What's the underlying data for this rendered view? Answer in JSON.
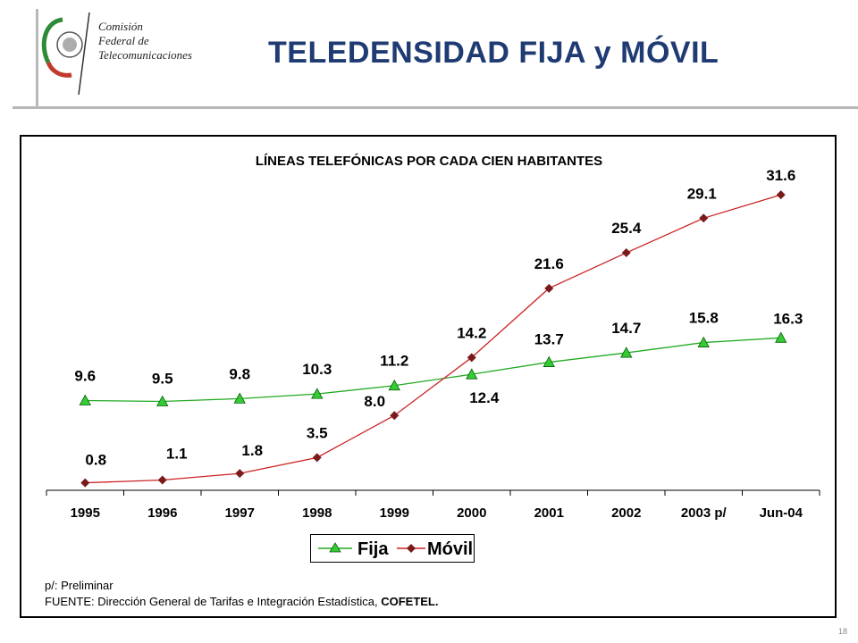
{
  "header": {
    "logo_lines": [
      "Comisión",
      "Federal de",
      "Telecomunicaciones"
    ],
    "title": "TELEDENSIDAD FIJA y MÓVIL"
  },
  "chart_data": {
    "type": "line",
    "title": "LÍNEAS TELEFÓNICAS POR CADA CIEN HABITANTES",
    "categories": [
      "1995",
      "1996",
      "1997",
      "1998",
      "1999",
      "2000",
      "2001",
      "2002",
      "2003 p/",
      "Jun-04"
    ],
    "series": [
      {
        "name": "Fija",
        "values": [
          9.6,
          9.5,
          9.8,
          10.3,
          11.2,
          12.4,
          13.7,
          14.7,
          15.8,
          16.3
        ],
        "color": "#22aa22",
        "marker": "triangle",
        "marker_color": "#33cc33"
      },
      {
        "name": "Móvil",
        "values": [
          0.8,
          1.1,
          1.8,
          3.5,
          8.0,
          14.2,
          21.6,
          25.4,
          29.1,
          31.6
        ],
        "color": "#cc2222",
        "marker": "diamond",
        "marker_color": "#7a1a1a"
      }
    ],
    "data_labels": {
      "Fija": [
        "9.6",
        "9.5",
        "9.8",
        "10.3",
        "11.2",
        "12.4",
        "13.7",
        "14.7",
        "15.8",
        "16.3"
      ],
      "Móvil": [
        "0.8",
        "1.1",
        "1.8",
        "3.5",
        "8.0",
        "14.2",
        "21.6",
        "25.4",
        "29.1",
        "31.6"
      ]
    },
    "ylim": [
      0,
      34
    ],
    "grid": false,
    "legend_position": "bottom-center"
  },
  "footer": {
    "note": "p/: Preliminar",
    "source_prefix": "FUENTE: Dirección General de Tarifas e Integración Estadística, ",
    "source_bold": "COFETEL."
  },
  "slide_number": "18"
}
